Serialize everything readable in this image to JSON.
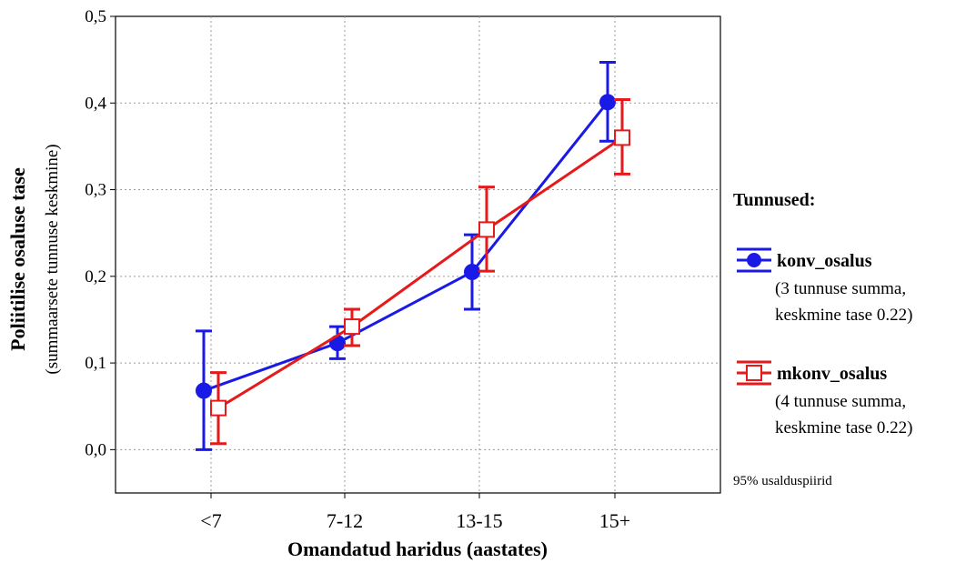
{
  "chart_data": {
    "type": "line",
    "categories": [
      "<7",
      "7-12",
      "13-15",
      "15+"
    ],
    "ylim": [
      -0.05,
      0.5
    ],
    "yticks": [
      "0,0",
      "0,1",
      "0,2",
      "0,3",
      "0,4",
      "0,5"
    ],
    "ytick_values": [
      0,
      0.1,
      0.2,
      0.3,
      0.4,
      0.5
    ],
    "grid": true,
    "legend_placement": "right",
    "xlabel": "Omandatud haridus (aastates)",
    "ylabel": "Poliitilise osaluse tase",
    "ylabel_sub": "(summaarsete tunnuse keskmine)",
    "legend_title": "Tunnused:",
    "legend_note": "95% usalduspiirid",
    "series": [
      {
        "name": "konv_osalus",
        "desc1": "(3 tunnuse summa,",
        "desc2": "keskmine tase 0.22)",
        "color": "#1a1ae6",
        "marker": "circle",
        "values": [
          0.068,
          0.123,
          0.205,
          0.401
        ],
        "lower": [
          0.0,
          0.105,
          0.162,
          0.356
        ],
        "upper": [
          0.137,
          0.142,
          0.248,
          0.447
        ]
      },
      {
        "name": "mkonv_osalus",
        "desc1": "(4 tunnuse summa,",
        "desc2": "keskmine tase 0.22)",
        "color": "#e61a1a",
        "marker": "square",
        "values": [
          0.048,
          0.142,
          0.254,
          0.36
        ],
        "lower": [
          0.007,
          0.12,
          0.206,
          0.318
        ],
        "upper": [
          0.089,
          0.162,
          0.303,
          0.404
        ]
      }
    ]
  }
}
